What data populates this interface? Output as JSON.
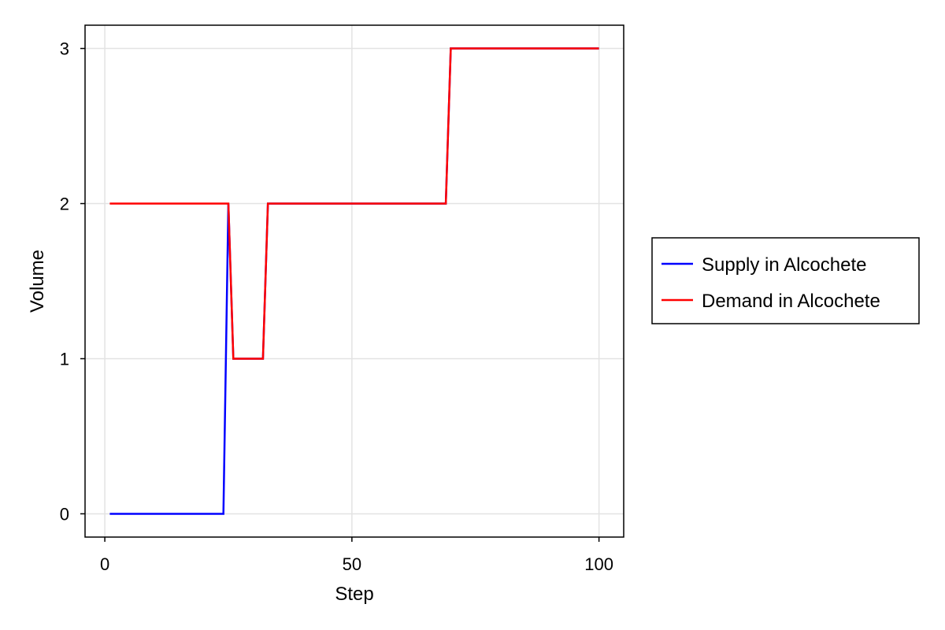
{
  "chart_data": {
    "type": "line",
    "title": "",
    "xlabel": "Step",
    "ylabel": "Volume",
    "xlim": [
      -4,
      105
    ],
    "ylim": [
      -0.15,
      3.15
    ],
    "xticks": [
      0,
      50,
      100
    ],
    "yticks": [
      0,
      1,
      2,
      3
    ],
    "xtick_labels": [
      "0",
      "50",
      "100"
    ],
    "ytick_labels": [
      "0",
      "1",
      "2",
      "3"
    ],
    "grid": true,
    "legend_position": "right",
    "series": [
      {
        "name": "Supply in Alcochete",
        "color": "#0000ff",
        "points": [
          [
            1,
            0
          ],
          [
            24,
            0
          ],
          [
            25,
            2
          ],
          [
            26,
            1
          ],
          [
            32,
            1
          ],
          [
            33,
            2
          ],
          [
            69,
            2
          ],
          [
            70,
            3
          ],
          [
            100,
            3
          ]
        ]
      },
      {
        "name": "Demand in Alcochete",
        "color": "#ff0000",
        "points": [
          [
            1,
            2
          ],
          [
            25,
            2
          ],
          [
            26,
            1
          ],
          [
            32,
            1
          ],
          [
            33,
            2
          ],
          [
            69,
            2
          ],
          [
            70,
            3
          ],
          [
            100,
            3
          ]
        ]
      }
    ]
  }
}
